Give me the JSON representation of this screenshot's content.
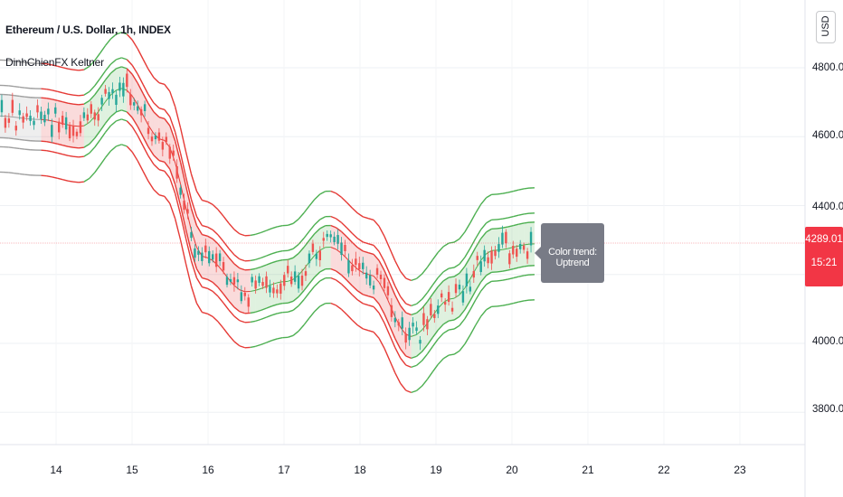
{
  "header": {
    "title": "Ethereum / U.S. Dollar, 1h, INDEX",
    "indicator": "DinhChienFX Keltner"
  },
  "toolbar": {
    "currency": "USD"
  },
  "price_axis": {
    "ticks": [
      "4800.00",
      "4600.00",
      "4400.00",
      "4000.00",
      "3800.00"
    ],
    "current_price": "4289.01",
    "countdown": "15:21"
  },
  "time_axis": {
    "ticks": [
      "14",
      "15",
      "16",
      "17",
      "18",
      "19",
      "20",
      "21",
      "22",
      "23"
    ]
  },
  "tooltip": {
    "text": "Color trend: Uptrend"
  },
  "colors": {
    "up": "#26a69a",
    "down": "#ef5350",
    "band_up": "#4caf50",
    "band_down": "#e53935",
    "band_neutral": "#9e9e9e",
    "accent": "#f23645"
  },
  "chart_data": {
    "type": "line",
    "title": "Ethereum / U.S. Dollar, 1h, INDEX",
    "xlabel": "",
    "ylabel": "",
    "x": [
      "14",
      "14.5",
      "15",
      "15.5",
      "16",
      "16.5",
      "17",
      "17.5",
      "18",
      "18.5",
      "19",
      "19.5",
      "20",
      "20.3"
    ],
    "ylim": [
      3770,
      4880
    ],
    "series": [
      {
        "name": "Close",
        "values": [
          4660,
          4650,
          4630,
          4740,
          4590,
          4250,
          4150,
          4180,
          4280,
          4200,
          4020,
          4130,
          4270,
          4289
        ]
      }
    ],
    "last_price": 4289.01,
    "grid": true
  }
}
